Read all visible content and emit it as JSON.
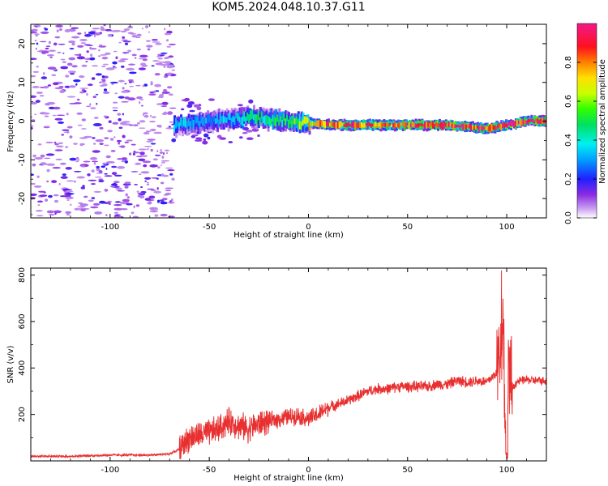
{
  "title": "KOM5.2024.048.10.37.G11",
  "chart_data": [
    {
      "type": "heatmap",
      "xlabel": "Height of straight line (km)",
      "ylabel": "Frequency (Hz)",
      "xlim": [
        -140,
        120
      ],
      "ylim": [
        -25,
        25
      ],
      "xticks": [
        -100,
        -50,
        0,
        50,
        100
      ],
      "yticks": [
        -20,
        -10,
        0,
        10,
        20
      ],
      "colorbar": {
        "label": "Normalized spectral amplitude",
        "range": [
          0,
          1
        ],
        "ticks": [
          0.0,
          0.2,
          0.4,
          0.6,
          0.8
        ],
        "tick_labels": [
          "0.0",
          "0.2",
          "0.4",
          "0.6",
          "0.8"
        ],
        "colormap": "gist_ncar-like (purple-blue-cyan-green-yellow-red-magenta)"
      },
      "description_points": [
        {
          "x": -65,
          "y": -1,
          "amp": 0.35
        },
        {
          "x": -50,
          "y": 0,
          "amp": 0.3
        },
        {
          "x": -30,
          "y": 1,
          "amp": 0.45
        },
        {
          "x": -10,
          "y": 0,
          "amp": 0.5
        },
        {
          "x": 10,
          "y": -1,
          "amp": 0.9
        },
        {
          "x": 40,
          "y": -1,
          "amp": 0.85
        },
        {
          "x": 70,
          "y": -1,
          "amp": 0.95
        },
        {
          "x": 90,
          "y": -2,
          "amp": 0.9
        },
        {
          "x": 110,
          "y": 0,
          "amp": 0.95
        }
      ]
    },
    {
      "type": "line",
      "xlabel": "Height of straight line (km)",
      "ylabel": "SNR (v/v)",
      "xlim": [
        -140,
        120
      ],
      "ylim": [
        0,
        830
      ],
      "xticks": [
        -100,
        -50,
        0,
        50,
        100
      ],
      "yticks": [
        200,
        400,
        600,
        800
      ],
      "color": "#e83030",
      "series": [
        {
          "x": [
            -140,
            -120,
            -100,
            -80,
            -70,
            -65,
            -60,
            -55,
            -50,
            -45,
            -40,
            -35,
            -30,
            -25,
            -20,
            -15,
            -10,
            -5,
            0,
            5,
            10,
            15,
            20,
            25,
            30,
            35,
            40,
            45,
            50,
            55,
            60,
            65,
            70,
            75,
            80,
            85,
            90,
            95,
            97,
            98,
            99,
            100,
            101,
            102,
            105,
            110,
            115,
            120
          ],
          "values": [
            20,
            20,
            25,
            25,
            30,
            50,
            100,
            110,
            120,
            140,
            170,
            150,
            140,
            160,
            170,
            180,
            190,
            195,
            180,
            200,
            230,
            245,
            260,
            280,
            300,
            310,
            310,
            320,
            320,
            320,
            320,
            330,
            330,
            345,
            340,
            345,
            340,
            380,
            500,
            620,
            300,
            40,
            450,
            300,
            340,
            350,
            345,
            345
          ]
        }
      ]
    }
  ]
}
